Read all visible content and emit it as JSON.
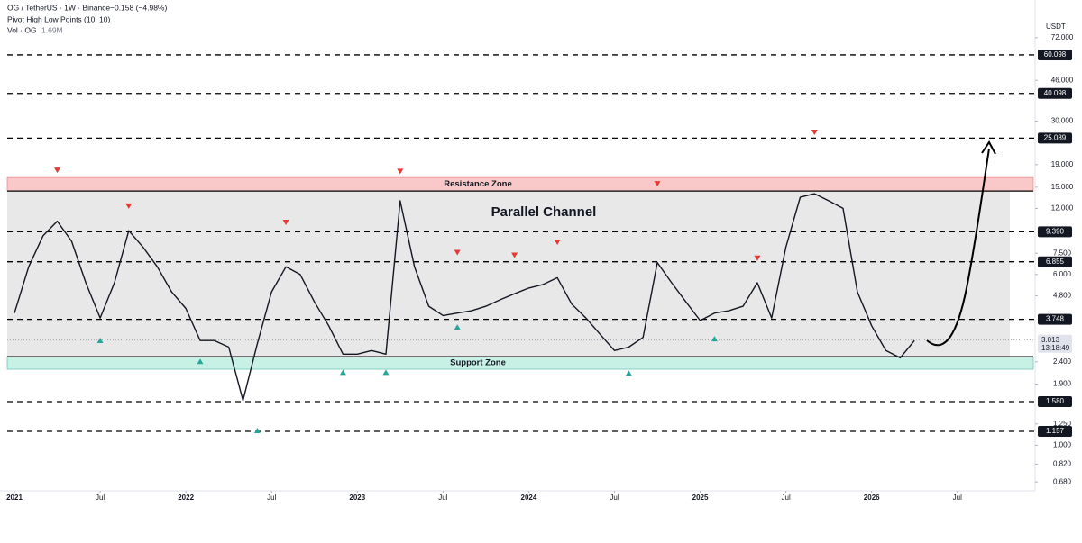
{
  "chart_data": {
    "type": "line",
    "title": "OG / TetherUS · 1W · Binance",
    "change": "−0.158 (−4.98%)",
    "indicator": "Pivot High Low Points (10, 10)",
    "volume_label": "Vol · OG",
    "volume_value": "1.69M",
    "y_unit": "USDT",
    "log_scale": true,
    "ylim": [
      0.62,
      88.5
    ],
    "xlim": [
      "2021-01",
      "2026-12"
    ],
    "yticks": [
      {
        "value": 72,
        "label": "72.000"
      },
      {
        "value": 46,
        "label": "46.000"
      },
      {
        "value": 30,
        "label": "30.000"
      },
      {
        "value": 19,
        "label": "19.000"
      },
      {
        "value": 15,
        "label": "15.000"
      },
      {
        "value": 12,
        "label": "12.000"
      },
      {
        "value": 7.5,
        "label": "7.500"
      },
      {
        "value": 6,
        "label": "6.000"
      },
      {
        "value": 4.8,
        "label": "4.800"
      },
      {
        "value": 2.4,
        "label": "2.400"
      },
      {
        "value": 1.9,
        "label": "1.900"
      },
      {
        "value": 1.25,
        "label": "1.250"
      },
      {
        "value": 1,
        "label": "1.000"
      },
      {
        "value": 0.82,
        "label": "0.820"
      },
      {
        "value": 0.68,
        "label": "0.680"
      }
    ],
    "xticks": [
      {
        "value": "2021-01",
        "label": "2021"
      },
      {
        "value": "2021-07",
        "label": "Jul"
      },
      {
        "value": "2022-01",
        "label": "2022"
      },
      {
        "value": "2022-07",
        "label": "Jul"
      },
      {
        "value": "2023-01",
        "label": "2023"
      },
      {
        "value": "2023-07",
        "label": "Jul"
      },
      {
        "value": "2024-01",
        "label": "2024"
      },
      {
        "value": "2024-07",
        "label": "Jul"
      },
      {
        "value": "2025-01",
        "label": "2025"
      },
      {
        "value": "2025-07",
        "label": "Jul"
      },
      {
        "value": "2026-01",
        "label": "2026"
      },
      {
        "value": "2026-07",
        "label": "Jul"
      }
    ],
    "levels": [
      60.098,
      40.098,
      25.089,
      {
        "value": 9.39,
        "label": "9.390"
      },
      6.855,
      3.748,
      {
        "value": 1.58,
        "label": "1.580"
      },
      1.157
    ],
    "current_price": 3.013,
    "countdown": "13:18:49",
    "zones": [
      {
        "label": "Resistance Zone",
        "range": [
          14.4,
          16.6
        ],
        "color": "#f9c9c9"
      },
      {
        "label": "Support Zone",
        "range": [
          2.22,
          2.53
        ],
        "color": "#c8f1e6"
      }
    ],
    "channel": {
      "label": "Parallel Channel",
      "range": [
        2.53,
        14.4
      ],
      "color": "#e8e8e8"
    },
    "series": [
      {
        "name": "OG",
        "color": "#131722",
        "x": [
          "2021-01",
          "2021-02",
          "2021-03",
          "2021-04",
          "2021-05",
          "2021-06",
          "2021-07",
          "2021-08",
          "2021-09",
          "2021-10",
          "2021-11",
          "2021-12",
          "2022-01",
          "2022-02",
          "2022-03",
          "2022-04",
          "2022-05",
          "2022-06",
          "2022-07",
          "2022-08",
          "2022-09",
          "2022-10",
          "2022-11",
          "2022-12",
          "2023-01",
          "2023-02",
          "2023-03",
          "2023-04",
          "2023-05",
          "2023-06",
          "2023-07",
          "2023-08",
          "2023-09",
          "2023-10",
          "2023-11",
          "2023-12",
          "2024-01",
          "2024-02",
          "2024-03",
          "2024-04",
          "2024-05",
          "2024-06",
          "2024-07",
          "2024-08",
          "2024-09",
          "2024-10",
          "2024-11",
          "2024-12",
          "2025-01",
          "2025-02",
          "2025-03",
          "2025-04",
          "2025-05",
          "2025-06",
          "2025-07",
          "2025-08",
          "2025-09",
          "2025-10",
          "2025-11",
          "2025-12",
          "2026-01",
          "2026-02",
          "2026-03",
          "2026-04"
        ],
        "values": [
          4.0,
          6.5,
          9.0,
          10.5,
          8.5,
          5.5,
          3.8,
          5.5,
          9.5,
          8.0,
          6.5,
          5.0,
          4.2,
          3.0,
          3.0,
          2.8,
          1.6,
          2.9,
          5.0,
          6.5,
          6.0,
          4.5,
          3.5,
          2.6,
          2.6,
          2.7,
          2.6,
          13.0,
          6.5,
          4.3,
          3.9,
          4.0,
          4.1,
          4.3,
          4.6,
          4.9,
          5.2,
          5.4,
          5.8,
          4.4,
          3.8,
          3.2,
          2.7,
          2.8,
          3.1,
          6.8,
          5.5,
          4.5,
          3.7,
          4.0,
          4.1,
          4.3,
          5.5,
          3.8,
          8.0,
          13.5,
          14.0,
          13.0,
          12.0,
          5.0,
          3.5,
          2.7,
          2.5,
          3.0
        ]
      }
    ],
    "pivot_highs": {
      "color": "#e53935",
      "x": [
        "2021-04",
        "2021-09",
        "2022-08",
        "2023-04",
        "2023-08",
        "2023-12",
        "2024-03",
        "2024-10",
        "2025-05",
        "2025-09"
      ],
      "values": [
        16.6,
        11.4,
        9.6,
        16.4,
        7.0,
        6.8,
        7.8,
        14.4,
        6.6,
        24.7
      ]
    },
    "pivot_lows": {
      "color": "#26a69a",
      "x": [
        "2021-07",
        "2022-02",
        "2022-06",
        "2022-12",
        "2023-03",
        "2023-08",
        "2024-08",
        "2025-02"
      ],
      "values": [
        3.24,
        2.6,
        1.26,
        2.32,
        2.32,
        3.73,
        2.3,
        3.3
      ]
    }
  }
}
